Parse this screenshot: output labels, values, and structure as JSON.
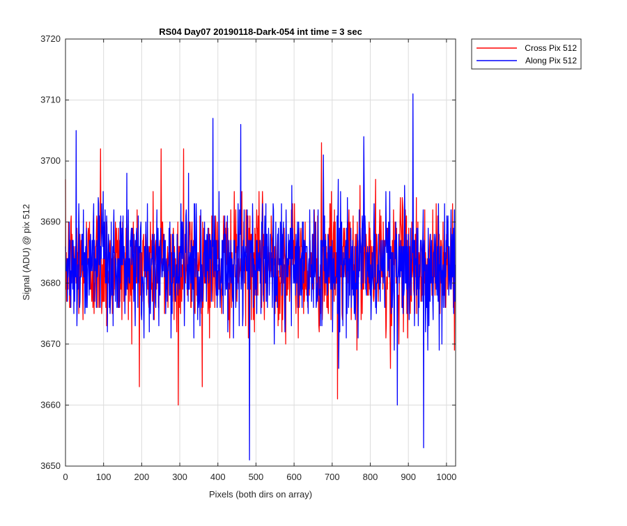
{
  "chart_data": {
    "type": "line",
    "title": "RS04 Day07 20190118-Dark-054 int time = 3 sec",
    "xlabel": "Pixels (both dirs on array)",
    "ylabel": "Signal (ADU) @ pix 512",
    "xlim": [
      0,
      1024
    ],
    "ylim": [
      3650,
      3720
    ],
    "xticks": [
      0,
      100,
      200,
      300,
      400,
      500,
      600,
      700,
      800,
      900,
      1000
    ],
    "yticks": [
      3650,
      3660,
      3670,
      3680,
      3690,
      3700,
      3710,
      3720
    ],
    "grid": true,
    "legend_position": "outside-top-right",
    "series": [
      {
        "name": "Cross Pix 512",
        "color": "#ff0000",
        "points": 1024,
        "mean": 3683,
        "spread": 5,
        "min": 3660,
        "max": 3703,
        "extremes": [
          [
            92,
            3702
          ],
          [
            251,
            3702
          ],
          [
            296,
            3660
          ],
          [
            310,
            3702
          ],
          [
            672,
            3703
          ],
          [
            714,
            3661
          ],
          [
            853,
            3666
          ]
        ]
      },
      {
        "name": "Along Pix 512",
        "color": "#0000ff",
        "points": 1024,
        "mean": 3683,
        "spread": 5,
        "min": 3651,
        "max": 3711,
        "extremes": [
          [
            28,
            3705
          ],
          [
            387,
            3707
          ],
          [
            460,
            3706
          ],
          [
            483,
            3651
          ],
          [
            783,
            3704
          ],
          [
            871,
            3660
          ],
          [
            912,
            3711
          ],
          [
            940,
            3653
          ]
        ]
      }
    ]
  }
}
